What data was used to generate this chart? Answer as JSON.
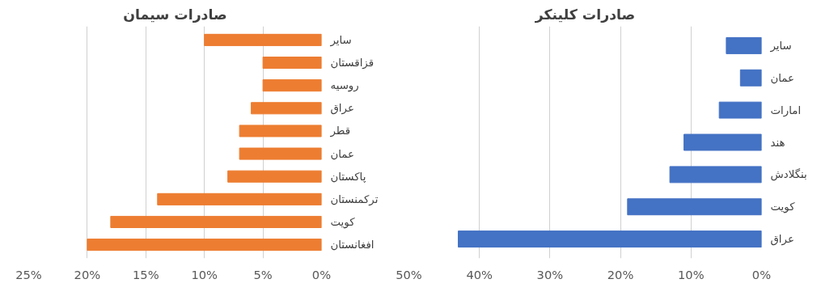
{
  "chart_data": [
    {
      "type": "bar",
      "orientation": "horizontal",
      "title": "صادرات سیمان",
      "categories": [
        "سایر",
        "قزاقستان",
        "روسیه",
        "عراق",
        "قطر",
        "عمان",
        "پاکستان",
        "ترکمنستان",
        "کویت",
        "افغانستان"
      ],
      "values": [
        10,
        5,
        5,
        6,
        7,
        7,
        8,
        14,
        18,
        20
      ],
      "color": "#ed7d31",
      "xlim": [
        25,
        0
      ],
      "xticks": [
        {
          "value": 25,
          "label": "25%"
        },
        {
          "value": 20,
          "label": "20%"
        },
        {
          "value": 15,
          "label": "15%"
        },
        {
          "value": 10,
          "label": "10%"
        },
        {
          "value": 5,
          "label": "5%"
        },
        {
          "value": 0,
          "label": "0%"
        }
      ],
      "grid": "x"
    },
    {
      "type": "bar",
      "orientation": "horizontal",
      "title": "صادرات کلینکر",
      "categories": [
        "سایر",
        "عمان",
        "امارات",
        "هند",
        "بنگلادش",
        "کویت",
        "عراق"
      ],
      "values": [
        5,
        3,
        6,
        11,
        13,
        19,
        43
      ],
      "color": "#4472c4",
      "xlim": [
        50,
        0
      ],
      "xticks": [
        {
          "value": 50,
          "label": "50%"
        },
        {
          "value": 40,
          "label": "40%"
        },
        {
          "value": 30,
          "label": "30%"
        },
        {
          "value": 20,
          "label": "20%"
        },
        {
          "value": 10,
          "label": "10%"
        },
        {
          "value": 0,
          "label": "0%"
        }
      ],
      "grid": "x"
    }
  ]
}
